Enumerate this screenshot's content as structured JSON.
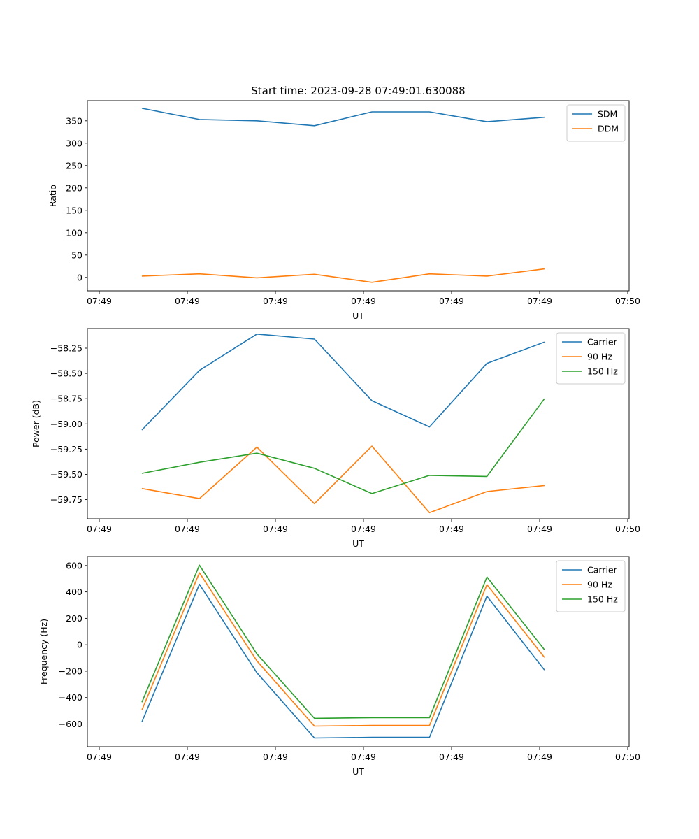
{
  "chart_data": [
    {
      "type": "line",
      "title": "Start time: 2023-09-28 07:49:01.630088",
      "xlabel": "UT",
      "ylabel": "Ratio",
      "xticks": [
        0,
        1,
        2,
        3,
        4,
        5,
        6
      ],
      "xtick_labels": [
        "07:49",
        "07:49",
        "07:49",
        "07:49",
        "07:49",
        "07:49",
        "07:50"
      ],
      "xlim": [
        -0.135,
        6.016
      ],
      "ylim": [
        -30,
        395
      ],
      "yticks": [
        0,
        50,
        100,
        150,
        200,
        250,
        300,
        350
      ],
      "ytick_labels": [
        "0",
        "50",
        "100",
        "150",
        "200",
        "250",
        "300",
        "350"
      ],
      "x": [
        0.484,
        1.137,
        1.79,
        2.443,
        3.096,
        3.749,
        4.402,
        5.055
      ],
      "legend": "top-right",
      "series": [
        {
          "name": "SDM",
          "color": "#1f77b4",
          "values": [
            378,
            353,
            350,
            339,
            370,
            370,
            348,
            358
          ]
        },
        {
          "name": "DDM",
          "color": "#ff7f0e",
          "values": [
            3,
            8,
            -1,
            7,
            -11,
            8,
            3,
            19
          ]
        }
      ]
    },
    {
      "type": "line",
      "title": "",
      "xlabel": "UT",
      "ylabel": "Power (dB)",
      "xticks": [
        0,
        1,
        2,
        3,
        4,
        5,
        6
      ],
      "xtick_labels": [
        "07:49",
        "07:49",
        "07:49",
        "07:49",
        "07:49",
        "07:49",
        "07:50"
      ],
      "xlim": [
        -0.135,
        6.016
      ],
      "ylim": [
        -59.94,
        -58.056
      ],
      "yticks": [
        -59.75,
        -59.5,
        -59.25,
        -59.0,
        -58.75,
        -58.5,
        -58.25
      ],
      "ytick_labels": [
        "−59.75",
        "−59.50",
        "−59.25",
        "−59.00",
        "−58.75",
        "−58.50",
        "−58.25"
      ],
      "x": [
        0.484,
        1.137,
        1.79,
        2.443,
        3.096,
        3.749,
        4.402,
        5.055
      ],
      "legend": "top-right",
      "series": [
        {
          "name": "Carrier",
          "color": "#1f77b4",
          "values": [
            -59.06,
            -58.47,
            -58.11,
            -58.16,
            -58.77,
            -59.03,
            -58.4,
            -58.19
          ]
        },
        {
          "name": "90 Hz",
          "color": "#ff7f0e",
          "values": [
            -59.64,
            -59.74,
            -59.23,
            -59.79,
            -59.22,
            -59.88,
            -59.67,
            -59.61
          ]
        },
        {
          "name": "150 Hz",
          "color": "#2ca02c",
          "values": [
            -59.49,
            -59.38,
            -59.29,
            -59.44,
            -59.69,
            -59.51,
            -59.52,
            -58.75
          ]
        }
      ]
    },
    {
      "type": "line",
      "title": "",
      "xlabel": "UT",
      "ylabel": "Frequency (Hz)",
      "xticks": [
        0,
        1,
        2,
        3,
        4,
        5,
        6
      ],
      "xtick_labels": [
        "07:49",
        "07:49",
        "07:49",
        "07:49",
        "07:49",
        "07:49",
        "07:50"
      ],
      "xlim": [
        -0.135,
        6.016
      ],
      "ylim": [
        -772,
        668
      ],
      "yticks": [
        -600,
        -400,
        -200,
        0,
        200,
        400,
        600
      ],
      "ytick_labels": [
        "−600",
        "−400",
        "−200",
        "0",
        "200",
        "400",
        "600"
      ],
      "x": [
        0.484,
        1.137,
        1.79,
        2.443,
        3.096,
        3.749,
        4.402,
        5.055
      ],
      "legend": "top-right",
      "series": [
        {
          "name": "Carrier",
          "color": "#1f77b4",
          "values": [
            -584,
            458,
            -212,
            -706,
            -701,
            -701,
            368,
            -191
          ]
        },
        {
          "name": "90 Hz",
          "color": "#ff7f0e",
          "values": [
            -494,
            545,
            -122,
            -616,
            -611,
            -611,
            455,
            -96
          ]
        },
        {
          "name": "150 Hz",
          "color": "#2ca02c",
          "values": [
            -435,
            603,
            -69,
            -557,
            -552,
            -552,
            513,
            -37
          ]
        }
      ]
    }
  ]
}
